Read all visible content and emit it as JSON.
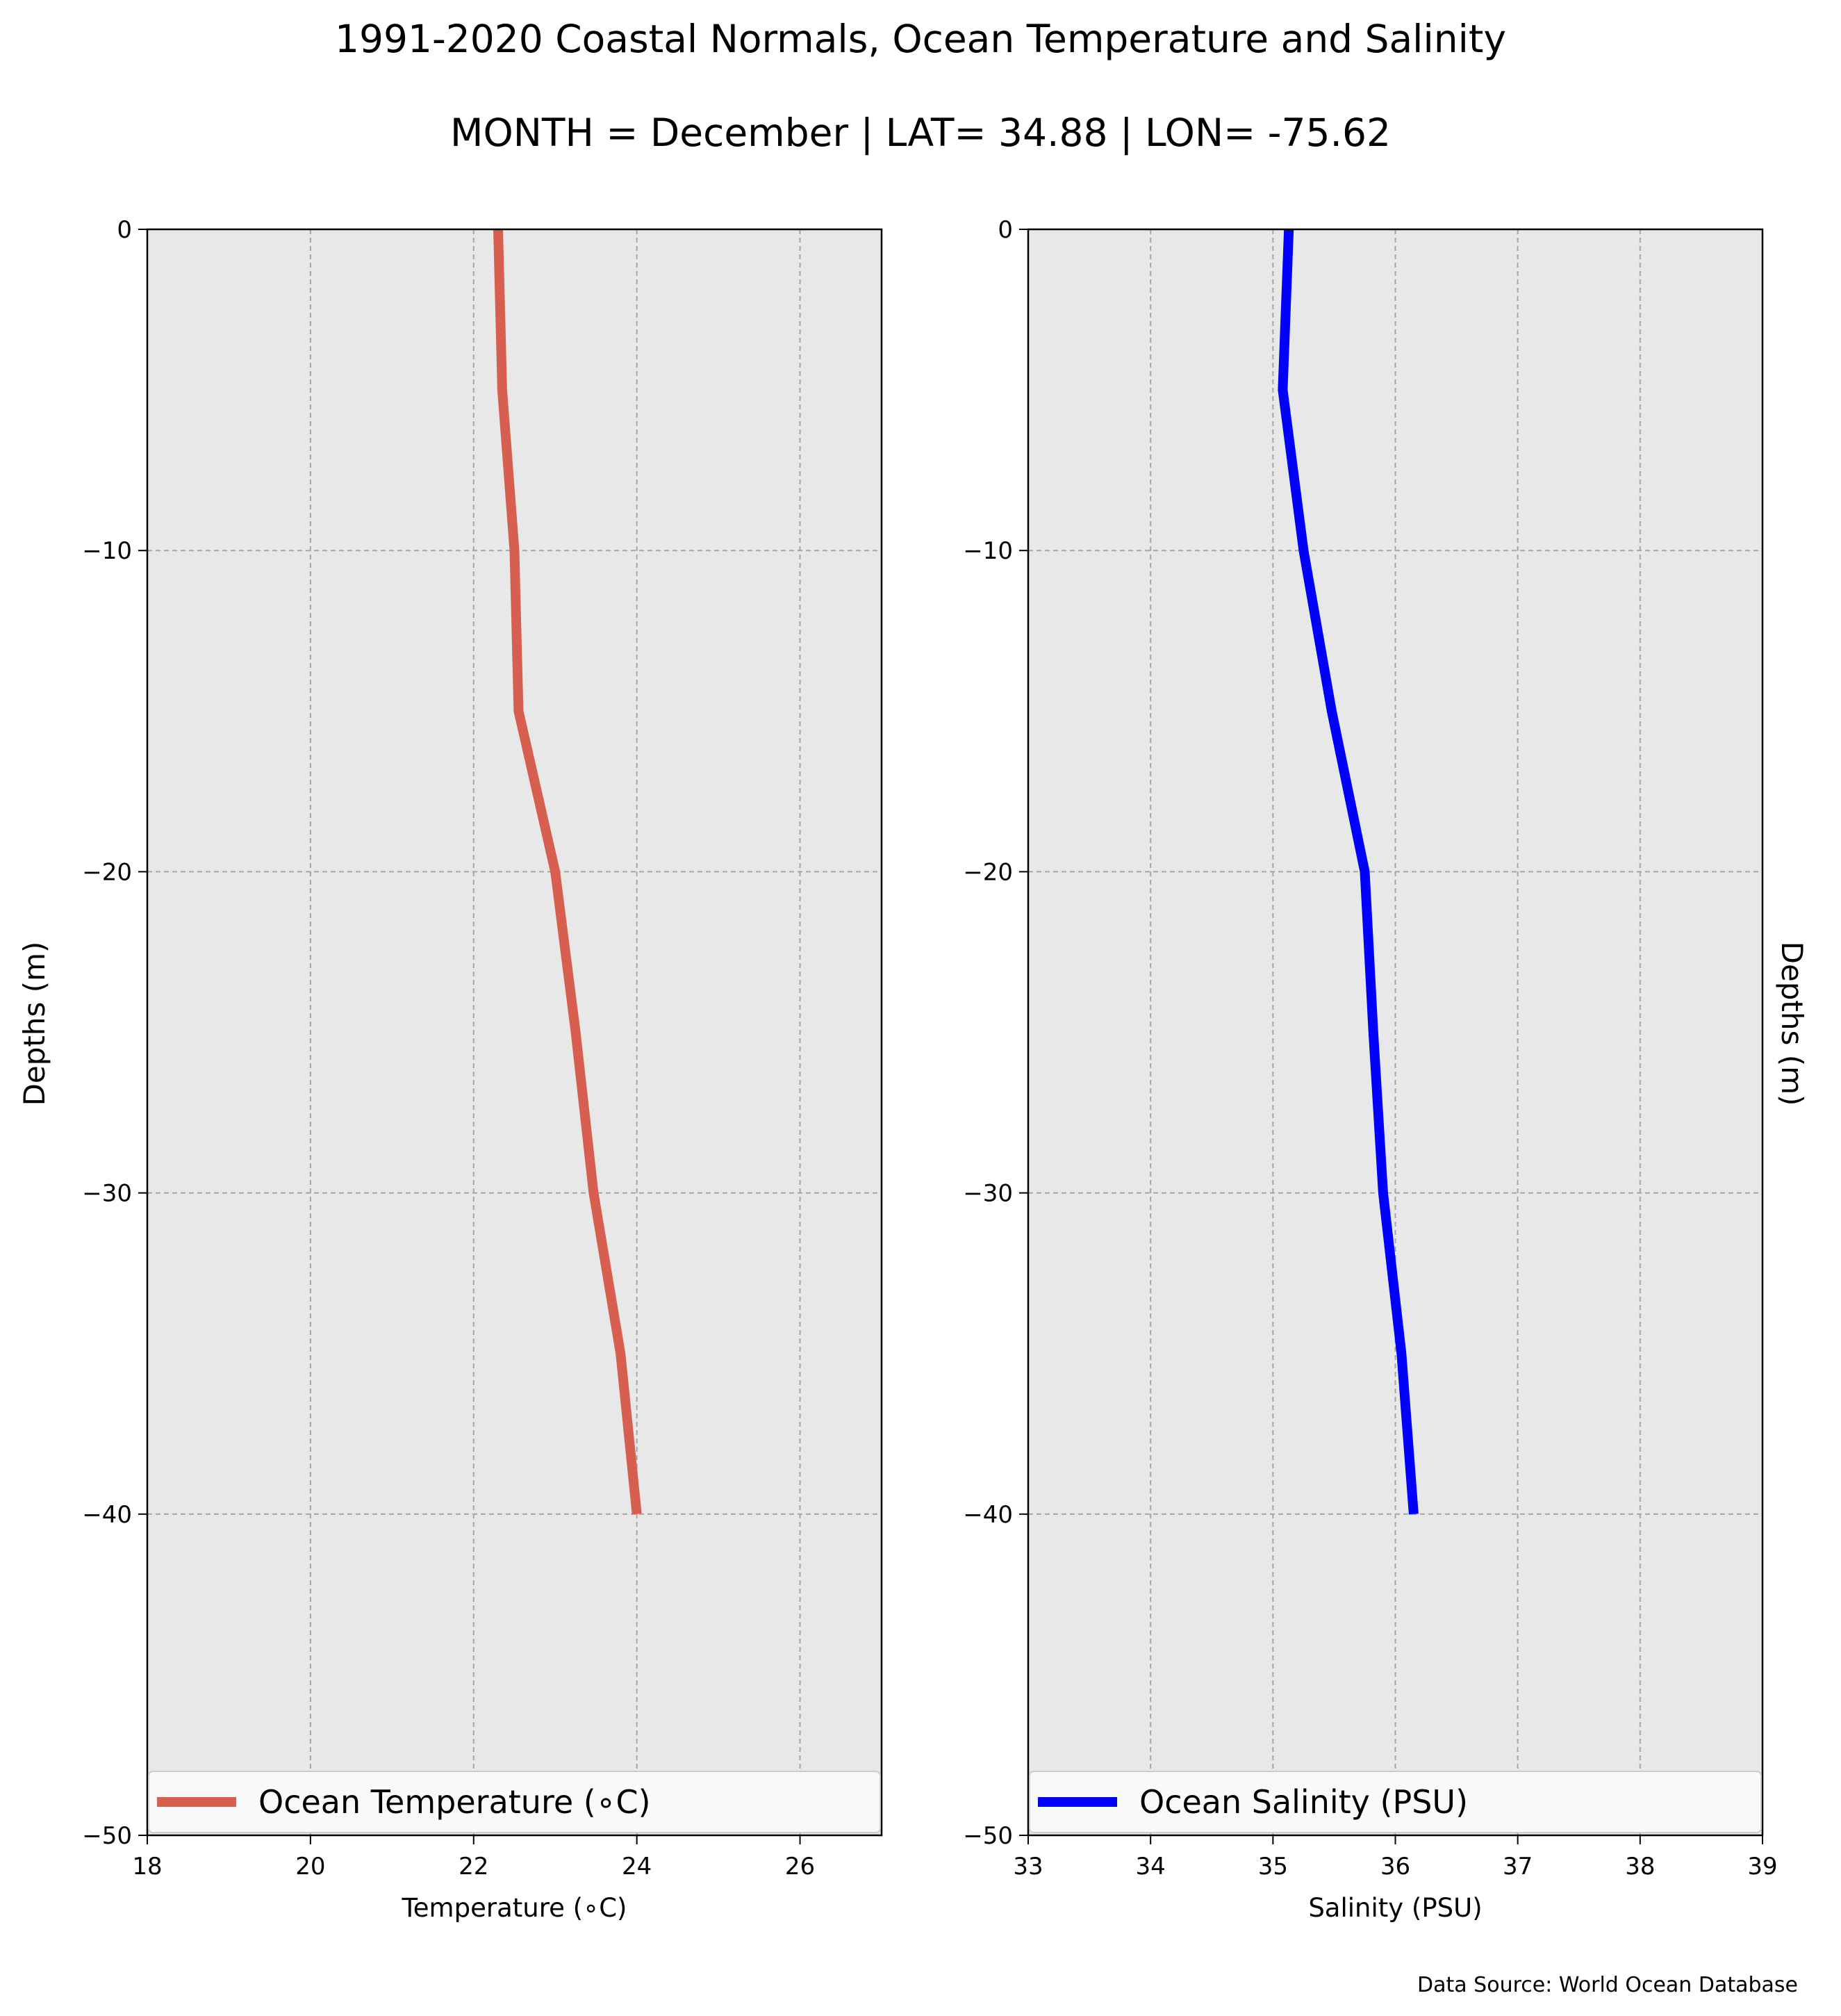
{
  "figure": {
    "title": "1991-2020 Coastal Normals, Ocean Temperature and Salinity",
    "subtitle": "MONTH = December | LAT= 34.88 | LON= -75.62",
    "source": "Data Source: World Ocean Database"
  },
  "chart_data": [
    {
      "type": "line",
      "xlabel": "Temperature (∘C)",
      "ylabel": "Depths (m)",
      "xlim": [
        18,
        27
      ],
      "ylim": [
        -50,
        0
      ],
      "xticks": [
        18,
        20,
        22,
        24,
        26
      ],
      "xtick_labels": [
        "18",
        "20",
        "22",
        "24",
        "26"
      ],
      "yticks": [
        0,
        -10,
        -20,
        -30,
        -40,
        -50
      ],
      "ytick_labels": [
        "0",
        "−10",
        "−20",
        "−30",
        "−40",
        "−50"
      ],
      "grid": true,
      "legend_position": "lower center",
      "series": [
        {
          "name": "Ocean Temperature (∘C)",
          "color": "#d65f4f",
          "x": [
            22.3,
            22.35,
            22.5,
            22.55,
            23.0,
            23.25,
            23.47,
            23.8,
            24.0
          ],
          "y": [
            0,
            -5,
            -10,
            -15,
            -20,
            -25,
            -30,
            -35,
            -40
          ]
        }
      ]
    },
    {
      "type": "line",
      "xlabel": "Salinity (PSU)",
      "ylabel": "Depths (m)",
      "xlim": [
        33,
        39
      ],
      "ylim": [
        -50,
        0
      ],
      "xticks": [
        33,
        34,
        35,
        36,
        37,
        38,
        39
      ],
      "xtick_labels": [
        "33",
        "34",
        "35",
        "36",
        "37",
        "38",
        "39"
      ],
      "yticks": [
        0,
        -10,
        -20,
        -30,
        -40,
        -50
      ],
      "ytick_labels": [
        "0",
        "−10",
        "−20",
        "−30",
        "−40",
        "−50"
      ],
      "grid": true,
      "legend_position": "lower center",
      "series": [
        {
          "name": "Ocean Salinity (PSU)",
          "color": "#0000ff",
          "x": [
            35.13,
            35.08,
            35.25,
            35.48,
            35.75,
            35.82,
            35.9,
            36.05,
            36.15
          ],
          "y": [
            0,
            -5,
            -10,
            -15,
            -20,
            -25,
            -30,
            -35,
            -40
          ]
        }
      ]
    }
  ]
}
